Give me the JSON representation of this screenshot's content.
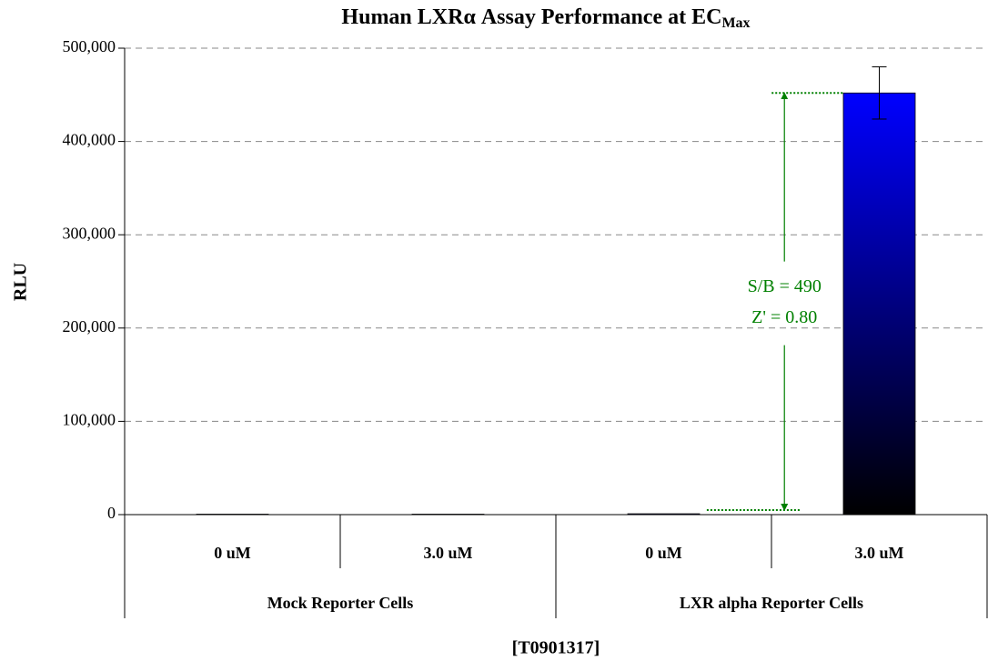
{
  "chart_data": {
    "type": "bar",
    "title": "Human LXRα Assay Performance at EC",
    "title_subscript": "Max",
    "y_label": "RLU",
    "x_label": "[T0901317]",
    "groups": [
      {
        "name": "Mock Reporter Cells",
        "categories": [
          "0 uM",
          "3.0 uM"
        ],
        "values": [
          500,
          500
        ],
        "errors": [
          null,
          null
        ]
      },
      {
        "name": "LXR alpha Reporter Cells",
        "categories": [
          "0 uM",
          "3.0 uM"
        ],
        "values": [
          920,
          452000
        ],
        "errors": [
          null,
          28000
        ]
      }
    ],
    "color": "#0000ff",
    "gradient_to": "#000000",
    "ylim": [
      0,
      500000
    ],
    "yticks": [
      0,
      {
        "value": 100000,
        "label": "100,000"
      },
      {
        "value": 200000,
        "label": "200,000"
      },
      {
        "value": 300000,
        "label": "300,000"
      },
      {
        "value": 400000,
        "label": "400,000"
      },
      {
        "value": 500000,
        "label": "500,000"
      }
    ],
    "grid": true,
    "annotations": {
      "texts": [
        "S/B = 490",
        "Z' = 0.80"
      ],
      "color": "#008000"
    }
  }
}
